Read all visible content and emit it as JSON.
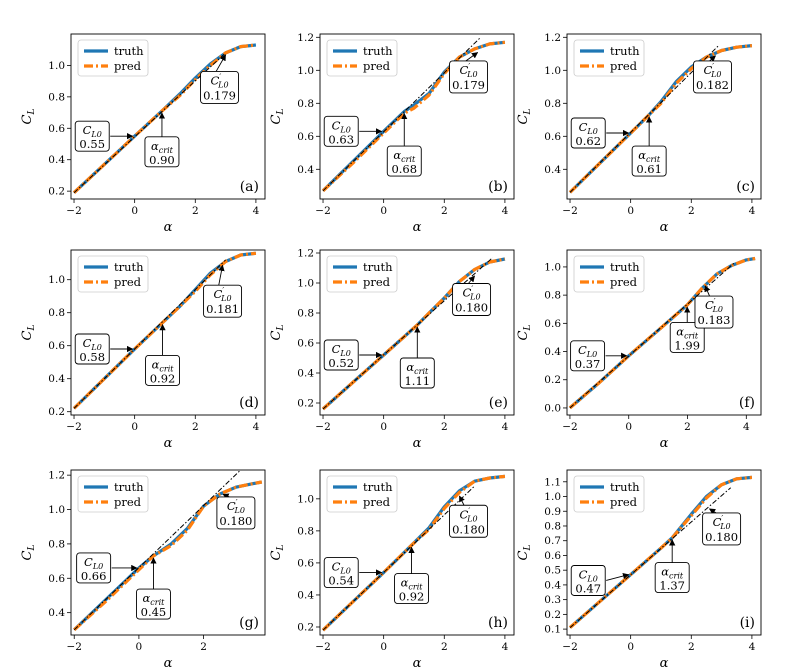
{
  "figure": {
    "panels_per_row": 3
  },
  "colors": {
    "truth": "#1f77b4",
    "pred": "#ff7f0e",
    "fit": "#000000"
  },
  "legend": {
    "truth": "truth",
    "pred": "pred"
  },
  "chart_data": [
    {
      "type": "line",
      "tag": "(a)",
      "xlabel": "α",
      "ylabel": "C_L",
      "xlim": [
        -2.1,
        4.3
      ],
      "ylim": [
        0.15,
        1.2
      ],
      "xticks": [
        -2,
        0,
        2,
        4
      ],
      "yticks": [
        0.2,
        0.4,
        0.6,
        0.8,
        1.0
      ],
      "cl0": "0.55",
      "alpha_crit": "0.90",
      "cl0_slope": "0.179",
      "fit": {
        "x": [
          -2.0,
          3.0
        ],
        "y": [
          0.19,
          1.08
        ]
      },
      "series": [
        {
          "name": "truth",
          "x": [
            -2.0,
            -1.0,
            0.0,
            0.9,
            1.5,
            2.0,
            2.5,
            3.0,
            3.5,
            4.0
          ],
          "y": [
            0.19,
            0.37,
            0.55,
            0.71,
            0.82,
            0.92,
            1.01,
            1.08,
            1.12,
            1.13
          ]
        },
        {
          "name": "pred",
          "x": [
            -2.0,
            -1.0,
            0.0,
            0.9,
            1.5,
            2.0,
            2.5,
            3.0,
            3.5,
            4.0
          ],
          "y": [
            0.19,
            0.37,
            0.55,
            0.71,
            0.81,
            0.91,
            1.0,
            1.08,
            1.12,
            1.13
          ]
        }
      ],
      "callouts": {
        "cl0_at": [
          0.0,
          0.55
        ],
        "cl0_box": [
          -1.4,
          0.55
        ],
        "crit_at": [
          0.9,
          0.71
        ],
        "crit_box": [
          0.9,
          0.45
        ],
        "slope_at": [
          3.0,
          1.08
        ],
        "slope_box": [
          2.8,
          0.86
        ]
      }
    },
    {
      "type": "line",
      "tag": "(b)",
      "xlabel": "α",
      "ylabel": "C_L",
      "xlim": [
        -2.1,
        4.3
      ],
      "ylim": [
        0.22,
        1.22
      ],
      "xticks": [
        -2,
        0,
        2,
        4
      ],
      "yticks": [
        0.4,
        0.6,
        0.8,
        1.0,
        1.2
      ],
      "cl0": "0.63",
      "alpha_crit": "0.68",
      "cl0_slope": "0.179",
      "fit": {
        "x": [
          -2.0,
          3.2
        ],
        "y": [
          0.27,
          1.2
        ]
      },
      "series": [
        {
          "name": "truth",
          "x": [
            -2.0,
            -1.0,
            0.0,
            0.68,
            1.0,
            1.5,
            2.0,
            2.5,
            3.0,
            3.5,
            4.0
          ],
          "y": [
            0.27,
            0.45,
            0.63,
            0.75,
            0.79,
            0.86,
            0.99,
            1.08,
            1.13,
            1.16,
            1.17
          ]
        },
        {
          "name": "pred",
          "x": [
            -2.0,
            -1.0,
            0.0,
            0.68,
            1.0,
            1.5,
            2.0,
            2.5,
            3.0,
            3.5,
            4.0
          ],
          "y": [
            0.27,
            0.44,
            0.62,
            0.74,
            0.77,
            0.85,
            0.98,
            1.08,
            1.13,
            1.16,
            1.17
          ]
        }
      ],
      "callouts": {
        "cl0_at": [
          0.0,
          0.63
        ],
        "cl0_box": [
          -1.4,
          0.63
        ],
        "crit_at": [
          0.68,
          0.75
        ],
        "crit_box": [
          0.68,
          0.45
        ],
        "slope_at": [
          3.1,
          1.12
        ],
        "slope_box": [
          2.8,
          0.96
        ]
      }
    },
    {
      "type": "line",
      "tag": "(c)",
      "xlabel": "α",
      "ylabel": "C_L",
      "xlim": [
        -2.1,
        4.3
      ],
      "ylim": [
        0.22,
        1.22
      ],
      "xticks": [
        -2,
        0,
        2,
        4
      ],
      "yticks": [
        0.4,
        0.6,
        0.8,
        1.0,
        1.2
      ],
      "cl0": "0.62",
      "alpha_crit": "0.61",
      "cl0_slope": "0.182",
      "fit": {
        "x": [
          -2.0,
          2.9
        ],
        "y": [
          0.26,
          1.15
        ]
      },
      "series": [
        {
          "name": "truth",
          "x": [
            -2.0,
            -1.0,
            0.0,
            0.61,
            1.0,
            1.5,
            2.0,
            2.5,
            3.0,
            3.5,
            4.0
          ],
          "y": [
            0.26,
            0.44,
            0.62,
            0.73,
            0.81,
            0.93,
            1.02,
            1.08,
            1.12,
            1.14,
            1.15
          ]
        },
        {
          "name": "pred",
          "x": [
            -2.0,
            -1.0,
            0.0,
            0.61,
            1.0,
            1.5,
            2.0,
            2.5,
            3.0,
            3.5,
            4.0
          ],
          "y": [
            0.26,
            0.44,
            0.62,
            0.73,
            0.8,
            0.92,
            1.01,
            1.08,
            1.12,
            1.14,
            1.15
          ]
        }
      ],
      "callouts": {
        "cl0_at": [
          0.0,
          0.62
        ],
        "cl0_box": [
          -1.4,
          0.62
        ],
        "crit_at": [
          0.61,
          0.73
        ],
        "crit_box": [
          0.61,
          0.45
        ],
        "slope_at": [
          2.8,
          1.1
        ],
        "slope_box": [
          2.7,
          0.96
        ]
      }
    },
    {
      "type": "line",
      "tag": "(d)",
      "xlabel": "α",
      "ylabel": "C_L",
      "xlim": [
        -2.1,
        4.3
      ],
      "ylim": [
        0.18,
        1.18
      ],
      "xticks": [
        -2,
        0,
        2,
        4
      ],
      "yticks": [
        0.2,
        0.4,
        0.6,
        0.8,
        1.0
      ],
      "cl0": "0.58",
      "alpha_crit": "0.92",
      "cl0_slope": "0.181",
      "fit": {
        "x": [
          -2.0,
          3.0
        ],
        "y": [
          0.22,
          1.12
        ]
      },
      "series": [
        {
          "name": "truth",
          "x": [
            -2.0,
            -1.0,
            0.0,
            0.92,
            1.5,
            2.0,
            2.5,
            3.0,
            3.5,
            4.0
          ],
          "y": [
            0.22,
            0.4,
            0.58,
            0.74,
            0.84,
            0.94,
            1.04,
            1.11,
            1.15,
            1.16
          ]
        },
        {
          "name": "pred",
          "x": [
            -2.0,
            -1.0,
            0.0,
            0.92,
            1.5,
            2.0,
            2.5,
            3.0,
            3.5,
            4.0
          ],
          "y": [
            0.22,
            0.4,
            0.58,
            0.74,
            0.84,
            0.93,
            1.03,
            1.11,
            1.15,
            1.16
          ]
        }
      ],
      "callouts": {
        "cl0_at": [
          0.0,
          0.58
        ],
        "cl0_box": [
          -1.4,
          0.58
        ],
        "crit_at": [
          0.92,
          0.74
        ],
        "crit_box": [
          0.92,
          0.45
        ],
        "slope_at": [
          2.9,
          1.1
        ],
        "slope_box": [
          2.9,
          0.87
        ]
      }
    },
    {
      "type": "line",
      "tag": "(e)",
      "xlabel": "α",
      "ylabel": "C_L",
      "xlim": [
        -2.1,
        4.3
      ],
      "ylim": [
        0.12,
        1.22
      ],
      "xticks": [
        -2,
        0,
        2,
        4
      ],
      "yticks": [
        0.2,
        0.4,
        0.6,
        0.8,
        1.0,
        1.2
      ],
      "cl0": "0.52",
      "alpha_crit": "1.11",
      "cl0_slope": "0.180",
      "fit": {
        "x": [
          -2.0,
          3.6
        ],
        "y": [
          0.16,
          1.17
        ]
      },
      "series": [
        {
          "name": "truth",
          "x": [
            -2.0,
            -1.0,
            0.0,
            1.11,
            1.5,
            2.0,
            2.5,
            3.0,
            3.5,
            4.0
          ],
          "y": [
            0.16,
            0.34,
            0.52,
            0.72,
            0.8,
            0.9,
            1.01,
            1.09,
            1.14,
            1.16
          ]
        },
        {
          "name": "pred",
          "x": [
            -2.0,
            -1.0,
            0.0,
            1.11,
            1.5,
            2.0,
            2.5,
            3.0,
            3.5,
            4.0
          ],
          "y": [
            0.16,
            0.34,
            0.52,
            0.72,
            0.8,
            0.9,
            1.01,
            1.09,
            1.14,
            1.16
          ]
        }
      ],
      "callouts": {
        "cl0_at": [
          0.0,
          0.52
        ],
        "cl0_box": [
          -1.4,
          0.52
        ],
        "crit_at": [
          1.11,
          0.72
        ],
        "crit_box": [
          1.11,
          0.4
        ],
        "slope_at": [
          3.0,
          1.06
        ],
        "slope_box": [
          2.9,
          0.89
        ]
      }
    },
    {
      "type": "line",
      "tag": "(f)",
      "xlabel": "α",
      "ylabel": "C_L",
      "xlim": [
        -2.1,
        4.5
      ],
      "ylim": [
        -0.05,
        1.12
      ],
      "xticks": [
        -2,
        0,
        2,
        4
      ],
      "yticks": [
        0.0,
        0.2,
        0.4,
        0.6,
        0.8,
        1.0
      ],
      "cl0": "0.37",
      "alpha_crit": "1.99",
      "cl0_slope": "0.183",
      "fit": {
        "x": [
          -2.0,
          3.6
        ],
        "y": [
          0.0,
          1.03
        ]
      },
      "series": [
        {
          "name": "truth",
          "x": [
            -2.0,
            -1.0,
            0.0,
            1.0,
            1.99,
            2.5,
            3.0,
            3.5,
            4.0,
            4.3
          ],
          "y": [
            0.0,
            0.18,
            0.37,
            0.55,
            0.73,
            0.85,
            0.95,
            1.01,
            1.05,
            1.06
          ]
        },
        {
          "name": "pred",
          "x": [
            -2.0,
            -1.0,
            0.0,
            1.0,
            1.99,
            2.5,
            3.0,
            3.5,
            4.0,
            4.3
          ],
          "y": [
            0.0,
            0.18,
            0.37,
            0.55,
            0.73,
            0.85,
            0.95,
            1.01,
            1.05,
            1.06
          ]
        }
      ],
      "callouts": {
        "cl0_at": [
          0.0,
          0.37
        ],
        "cl0_box": [
          -1.4,
          0.37
        ],
        "crit_at": [
          1.99,
          0.73
        ],
        "crit_box": [
          1.99,
          0.5
        ],
        "slope_at": [
          2.6,
          0.88
        ],
        "slope_box": [
          2.9,
          0.68
        ]
      }
    },
    {
      "type": "line",
      "tag": "(g)",
      "xlabel": "α",
      "ylabel": "C_L",
      "xlim": [
        -2.1,
        3.9
      ],
      "ylim": [
        0.27,
        1.23
      ],
      "xticks": [
        -2,
        0,
        2
      ],
      "yticks": [
        0.4,
        0.6,
        0.8,
        1.0,
        1.2
      ],
      "cl0": "0.66",
      "alpha_crit": "0.45",
      "cl0_slope": "0.180",
      "fit": {
        "x": [
          -2.0,
          3.2
        ],
        "y": [
          0.3,
          1.24
        ]
      },
      "series": [
        {
          "name": "truth",
          "x": [
            -2.0,
            -1.0,
            0.0,
            0.45,
            1.0,
            1.5,
            2.0,
            2.5,
            3.0,
            3.5,
            3.8
          ],
          "y": [
            0.3,
            0.48,
            0.66,
            0.73,
            0.8,
            0.89,
            1.02,
            1.09,
            1.13,
            1.15,
            1.16
          ]
        },
        {
          "name": "pred",
          "x": [
            -2.0,
            -1.0,
            0.0,
            0.45,
            1.0,
            1.5,
            2.0,
            2.5,
            3.0,
            3.5,
            3.8
          ],
          "y": [
            0.3,
            0.47,
            0.65,
            0.73,
            0.79,
            0.88,
            1.02,
            1.09,
            1.13,
            1.15,
            1.16
          ]
        }
      ],
      "callouts": {
        "cl0_at": [
          0.0,
          0.66
        ],
        "cl0_box": [
          -1.4,
          0.66
        ],
        "crit_at": [
          0.45,
          0.73
        ],
        "crit_box": [
          0.45,
          0.45
        ],
        "slope_at": [
          2.6,
          1.1
        ],
        "slope_box": [
          3.0,
          0.98
        ]
      }
    },
    {
      "type": "line",
      "tag": "(h)",
      "xlabel": "α",
      "ylabel": "C_L",
      "xlim": [
        -2.1,
        4.3
      ],
      "ylim": [
        0.15,
        1.18
      ],
      "xticks": [
        -2,
        0,
        2,
        4
      ],
      "yticks": [
        0.2,
        0.4,
        0.6,
        0.8,
        1.0
      ],
      "cl0": "0.54",
      "alpha_crit": "0.92",
      "cl0_slope": "0.180",
      "fit": {
        "x": [
          -2.0,
          3.0
        ],
        "y": [
          0.18,
          1.08
        ]
      },
      "series": [
        {
          "name": "truth",
          "x": [
            -2.0,
            -1.0,
            0.0,
            0.92,
            1.5,
            2.0,
            2.5,
            3.0,
            3.5,
            4.0
          ],
          "y": [
            0.18,
            0.36,
            0.54,
            0.71,
            0.82,
            0.95,
            1.05,
            1.11,
            1.13,
            1.14
          ]
        },
        {
          "name": "pred",
          "x": [
            -2.0,
            -1.0,
            0.0,
            0.92,
            1.5,
            2.0,
            2.5,
            3.0,
            3.5,
            4.0
          ],
          "y": [
            0.18,
            0.36,
            0.54,
            0.71,
            0.81,
            0.94,
            1.04,
            1.11,
            1.13,
            1.14
          ]
        }
      ],
      "callouts": {
        "cl0_at": [
          0.0,
          0.54
        ],
        "cl0_box": [
          -1.4,
          0.54
        ],
        "crit_at": [
          0.92,
          0.71
        ],
        "crit_box": [
          0.92,
          0.44
        ],
        "slope_at": [
          2.5,
          1.03
        ],
        "slope_box": [
          2.8,
          0.86
        ]
      }
    },
    {
      "type": "line",
      "tag": "(i)",
      "xlabel": "α",
      "ylabel": "C_L",
      "xlim": [
        -2.1,
        4.3
      ],
      "ylim": [
        0.06,
        1.18
      ],
      "xticks": [
        -2,
        0,
        2,
        4
      ],
      "yticks": [
        0.1,
        0.2,
        0.3,
        0.4,
        0.5,
        0.6,
        0.7,
        0.8,
        0.9,
        1.0,
        1.1
      ],
      "cl0": "0.47",
      "alpha_crit": "1.37",
      "cl0_slope": "0.180",
      "fit": {
        "x": [
          -2.0,
          3.3
        ],
        "y": [
          0.11,
          1.06
        ]
      },
      "series": [
        {
          "name": "truth",
          "x": [
            -2.0,
            -1.0,
            0.0,
            1.0,
            1.37,
            2.0,
            2.5,
            3.0,
            3.5,
            4.0
          ],
          "y": [
            0.11,
            0.29,
            0.47,
            0.65,
            0.72,
            0.88,
            1.0,
            1.08,
            1.12,
            1.13
          ]
        },
        {
          "name": "pred",
          "x": [
            -2.0,
            -1.0,
            0.0,
            1.0,
            1.37,
            2.0,
            2.5,
            3.0,
            3.5,
            4.0
          ],
          "y": [
            0.11,
            0.29,
            0.47,
            0.65,
            0.72,
            0.87,
            0.99,
            1.08,
            1.12,
            1.13
          ]
        }
      ],
      "callouts": {
        "cl0_at": [
          0.0,
          0.47
        ],
        "cl0_box": [
          -1.4,
          0.43
        ],
        "crit_at": [
          1.37,
          0.72
        ],
        "crit_box": [
          1.37,
          0.45
        ],
        "slope_at": [
          2.6,
          0.93
        ],
        "slope_box": [
          3.0,
          0.78
        ]
      }
    }
  ]
}
